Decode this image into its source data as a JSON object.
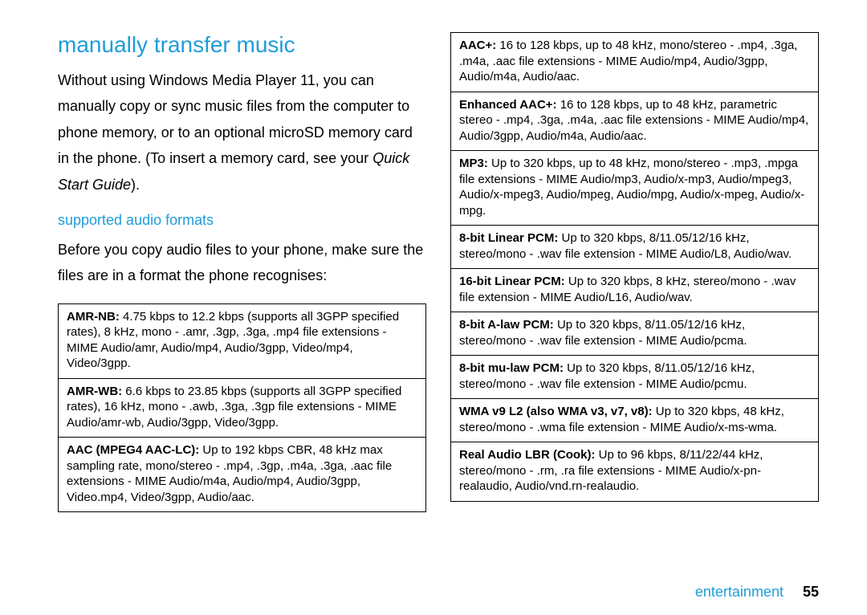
{
  "left": {
    "heading": "manually transfer music",
    "para1a": "Without using Windows Media Player 11, you can manually copy or sync music files from the computer to phone memory, or to an optional microSD memory card in the phone. (To insert a memory card, see your ",
    "para1_italic": "Quick Start Guide",
    "para1b": ").",
    "subheading": "supported audio formats",
    "para2": "Before you copy audio files to your phone, make sure the files are in a format the phone recognises:",
    "formats": [
      {
        "name": "AMR-NB:",
        "desc": " 4.75 kbps to 12.2 kbps (supports all 3GPP specified rates), 8 kHz, mono - .amr, .3gp, .3ga, .mp4 file extensions - MIME Audio/amr, Audio/mp4, Audio/3gpp, Video/mp4, Video/3gpp."
      },
      {
        "name": "AMR-WB:",
        "desc": " 6.6 kbps to 23.85 kbps (supports all 3GPP specified rates), 16 kHz, mono - .awb, .3ga, .3gp file extensions - MIME Audio/amr-wb, Audio/3gpp, Video/3gpp."
      },
      {
        "name": "AAC (MPEG4 AAC-LC):",
        "desc": " Up to 192 kbps CBR, 48 kHz max sampling rate, mono/stereo - .mp4, .3gp, .m4a, .3ga, .aac file extensions - MIME Audio/m4a, Audio/mp4, Audio/3gpp, Video.mp4, Video/3gpp, Audio/aac."
      }
    ]
  },
  "right": {
    "formats": [
      {
        "name": "AAC+:",
        "desc": " 16 to 128 kbps, up to 48 kHz, mono/stereo - .mp4, .3ga, .m4a, .aac file extensions - MIME Audio/mp4, Audio/3gpp, Audio/m4a, Audio/aac."
      },
      {
        "name": "Enhanced AAC+:",
        "desc": " 16 to 128 kbps, up to 48 kHz, parametric stereo - .mp4, .3ga, .m4a, .aac file extensions - MIME Audio/mp4, Audio/3gpp, Audio/m4a, Audio/aac."
      },
      {
        "name": "MP3:",
        "desc": " Up to 320 kbps, up to 48 kHz, mono/stereo - .mp3, .mpga file extensions - MIME Audio/mp3, Audio/x-mp3, Audio/mpeg3, Audio/x-mpeg3, Audio/mpeg, Audio/mpg, Audio/x-mpeg, Audio/x-mpg."
      },
      {
        "name": "8-bit Linear PCM:",
        "desc": " Up to 320 kbps, 8/11.05/12/16 kHz, stereo/mono - .wav file extension - MIME Audio/L8, Audio/wav."
      },
      {
        "name": "16-bit Linear PCM:",
        "desc": " Up to 320 kbps, 8 kHz, stereo/mono - .wav file extension - MIME Audio/L16, Audio/wav."
      },
      {
        "name": "8-bit A-law PCM:",
        "desc": " Up to 320 kbps, 8/11.05/12/16 kHz, stereo/mono - .wav file extension - MIME Audio/pcma."
      },
      {
        "name": "8-bit mu-law PCM:",
        "desc": " Up to 320 kbps, 8/11.05/12/16 kHz, stereo/mono - .wav file extension - MIME Audio/pcmu."
      },
      {
        "name": "WMA v9 L2 (also WMA v3, v7, v8):",
        "desc": " Up to 320 kbps, 48 kHz, stereo/mono - .wma file extension - MIME Audio/x-ms-wma."
      },
      {
        "name": "Real Audio LBR (Cook):",
        "desc": " Up to 96 kbps, 8/11/22/44 kHz, stereo/mono - .rm, .ra file extensions - MIME Audio/x-pn-realaudio, Audio/vnd.rn-realaudio."
      }
    ]
  },
  "footer": {
    "label": "entertainment",
    "page": "55"
  }
}
